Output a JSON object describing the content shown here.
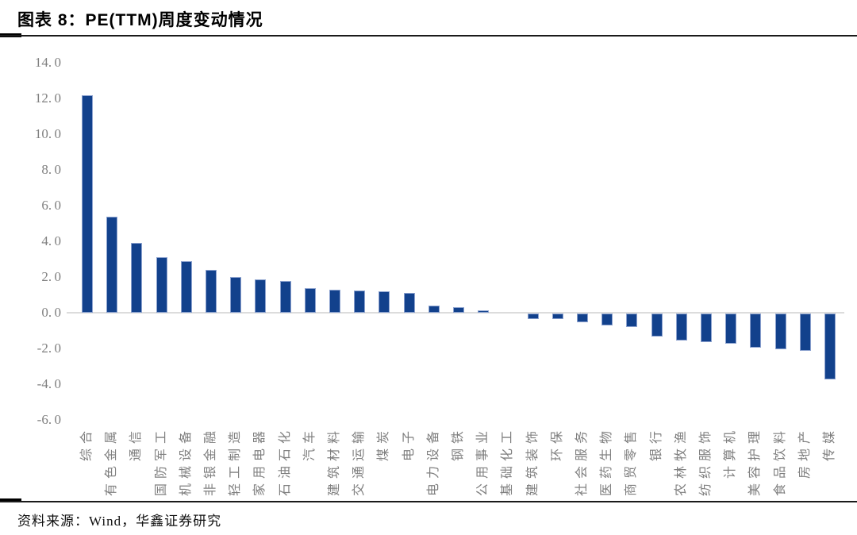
{
  "header": {
    "title": "图表 8：PE(TTM)周度变动情况"
  },
  "footer": {
    "source": "资料来源：Wind，华鑫证券研究"
  },
  "colors": {
    "bar_fill": "#12418c",
    "bar_border": "#8ca2cf",
    "zero_line": "#dcdcdc",
    "axis_text": "#7f7f7f",
    "rule": "#000000"
  },
  "chart_data": {
    "type": "bar",
    "title": "PE(TTM)周度变动情况",
    "xlabel": "",
    "ylabel": "",
    "ylim": [
      -6.0,
      14.0
    ],
    "ytick_step": 2.0,
    "ytick_labels": [
      "14.0",
      "12.0",
      "10.0",
      "8.0",
      "6.0",
      "4.0",
      "2.0",
      "0.0",
      "-2.0",
      "-4.0",
      "-6.0"
    ],
    "grid": false,
    "legend": "none",
    "categories": [
      "综合",
      "有色金属",
      "通信",
      "国防军工",
      "机械设备",
      "非银金融",
      "轻工制造",
      "家用电器",
      "石油石化",
      "汽车",
      "建筑材料",
      "交通运输",
      "煤炭",
      "电子",
      "电力设备",
      "钢铁",
      "公用事业",
      "基础化工",
      "建筑装饰",
      "环保",
      "社会服务",
      "医药生物",
      "商贸零售",
      "银行",
      "农林牧渔",
      "纺织服饰",
      "计算机",
      "美容护理",
      "食品饮料",
      "房地产",
      "传媒"
    ],
    "values": [
      12.2,
      5.4,
      3.9,
      3.1,
      2.9,
      2.4,
      2.0,
      1.85,
      1.8,
      1.4,
      1.3,
      1.25,
      1.2,
      1.1,
      0.4,
      0.3,
      0.15,
      0.0,
      -0.3,
      -0.3,
      -0.5,
      -0.65,
      -0.75,
      -1.3,
      -1.5,
      -1.6,
      -1.7,
      -1.9,
      -2.0,
      -2.1,
      -3.7
    ]
  }
}
